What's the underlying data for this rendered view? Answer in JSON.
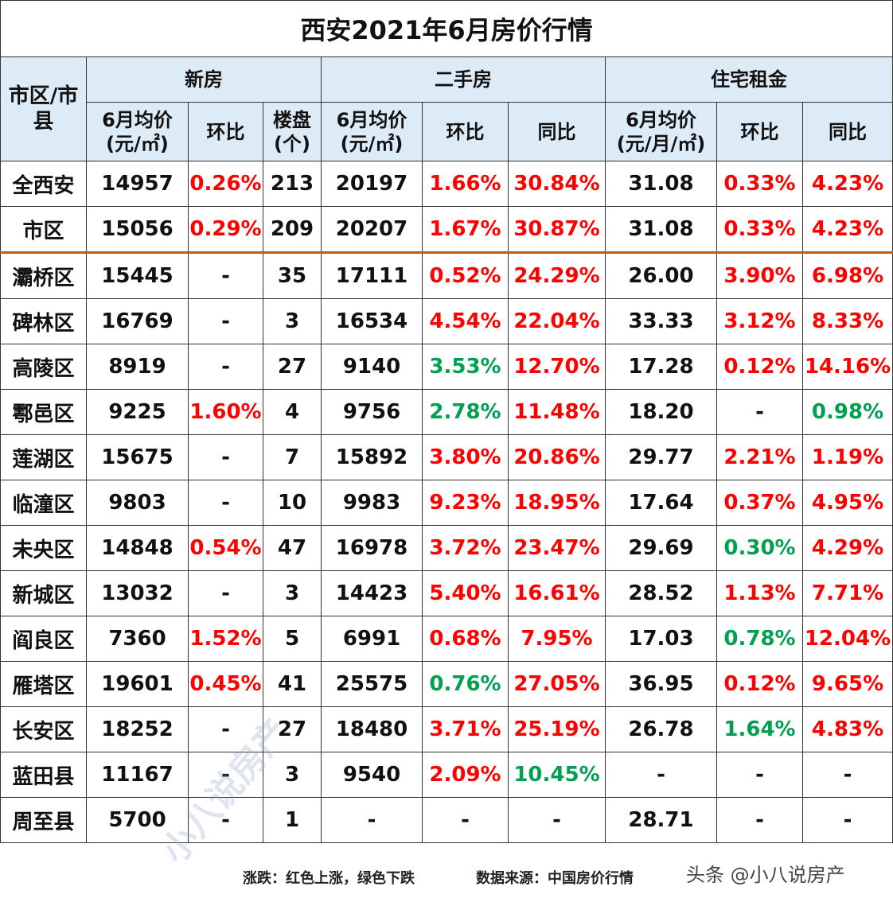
{
  "title": "西安2021年6月房价行情",
  "headers": {
    "region": "市区/市县",
    "new": "新房",
    "second": "二手房",
    "rent": "住宅租金",
    "new_price": "6月均价\n(元/㎡)",
    "new_mom": "环比",
    "new_count": "楼盘\n(个)",
    "sec_price": "6月均价\n(元/㎡)",
    "sec_mom": "环比",
    "sec_yoy": "同比",
    "rent_price": "6月均价\n(元/月/㎡)",
    "rent_mom": "环比",
    "rent_yoy": "同比"
  },
  "colors": {
    "up": "#FF0000",
    "down": "#00A050",
    "header_bg": "#DDEBF7"
  },
  "rows": [
    [
      "全西安",
      "14957",
      "0.26%",
      "213",
      "20197",
      "1.66%",
      "30.84%",
      "31.08",
      "0.33%",
      "4.23%"
    ],
    [
      "市区",
      "15056",
      "0.29%",
      "209",
      "20207",
      "1.67%",
      "30.87%",
      "31.08",
      "0.33%",
      "4.23%"
    ],
    [
      "灞桥区",
      "15445",
      "-",
      "35",
      "17111",
      "0.52%",
      "24.29%",
      "26.00",
      "3.90%",
      "6.98%"
    ],
    [
      "碑林区",
      "16769",
      "-",
      "3",
      "16534",
      "4.54%",
      "22.04%",
      "33.33",
      "3.12%",
      "8.33%"
    ],
    [
      "高陵区",
      "8919",
      "-",
      "27",
      "9140",
      "3.53%",
      "12.70%",
      "17.28",
      "0.12%",
      "14.16%"
    ],
    [
      "鄠邑区",
      "9225",
      "1.60%",
      "4",
      "9756",
      "2.78%",
      "11.48%",
      "18.20",
      "-",
      "0.98%"
    ],
    [
      "莲湖区",
      "15675",
      "-",
      "7",
      "15892",
      "3.80%",
      "20.86%",
      "29.77",
      "2.21%",
      "1.19%"
    ],
    [
      "临潼区",
      "9803",
      "-",
      "10",
      "9983",
      "9.23%",
      "18.95%",
      "17.64",
      "0.37%",
      "4.95%"
    ],
    [
      "未央区",
      "14848",
      "0.54%",
      "47",
      "16978",
      "3.72%",
      "23.47%",
      "29.69",
      "0.30%",
      "4.29%"
    ],
    [
      "新城区",
      "13032",
      "-",
      "3",
      "14423",
      "5.40%",
      "16.61%",
      "28.52",
      "1.13%",
      "7.71%"
    ],
    [
      "阎良区",
      "7360",
      "1.52%",
      "5",
      "6991",
      "0.68%",
      "7.95%",
      "17.03",
      "0.78%",
      "12.04%"
    ],
    [
      "雁塔区",
      "19601",
      "0.45%",
      "41",
      "25575",
      "0.76%",
      "27.05%",
      "36.95",
      "0.12%",
      "9.65%"
    ],
    [
      "长安区",
      "18252",
      "-",
      "27",
      "18480",
      "3.71%",
      "25.19%",
      "26.78",
      "1.64%",
      "4.83%"
    ],
    [
      "蓝田县",
      "11167",
      "-",
      "3",
      "9540",
      "2.09%",
      "10.45%",
      "-",
      "-",
      "-"
    ],
    [
      "周至县",
      "5700",
      "-",
      "1",
      "-",
      "-",
      "-",
      "28.71",
      "-",
      "-"
    ]
  ],
  "row_colors": [
    [
      "",
      "",
      "up",
      "",
      "",
      "up",
      "up",
      "",
      "up",
      "up"
    ],
    [
      "",
      "",
      "up",
      "",
      "",
      "up",
      "up",
      "",
      "up",
      "up"
    ],
    [
      "",
      "",
      "",
      "",
      "",
      "up",
      "up",
      "",
      "up",
      "up"
    ],
    [
      "",
      "",
      "",
      "",
      "",
      "up",
      "up",
      "",
      "up",
      "up"
    ],
    [
      "",
      "",
      "",
      "",
      "",
      "down",
      "up",
      "",
      "up",
      "up"
    ],
    [
      "",
      "",
      "up",
      "",
      "",
      "down",
      "up",
      "",
      "",
      "down"
    ],
    [
      "",
      "",
      "",
      "",
      "",
      "up",
      "up",
      "",
      "up",
      "up"
    ],
    [
      "",
      "",
      "",
      "",
      "",
      "up",
      "up",
      "",
      "up",
      "up"
    ],
    [
      "",
      "",
      "up",
      "",
      "",
      "up",
      "up",
      "",
      "down",
      "up"
    ],
    [
      "",
      "",
      "",
      "",
      "",
      "up",
      "up",
      "",
      "up",
      "up"
    ],
    [
      "",
      "",
      "up",
      "",
      "",
      "up",
      "up",
      "",
      "down",
      "up"
    ],
    [
      "",
      "",
      "up",
      "",
      "",
      "down",
      "up",
      "",
      "up",
      "up"
    ],
    [
      "",
      "",
      "",
      "",
      "",
      "up",
      "up",
      "",
      "down",
      "up"
    ],
    [
      "",
      "",
      "",
      "",
      "",
      "up",
      "down",
      "",
      "",
      ""
    ],
    [
      "",
      "",
      "",
      "",
      "",
      "",
      "",
      "",
      "",
      ""
    ]
  ],
  "footer": {
    "legend": "涨跌：红色上涨，绿色下跌",
    "source": "数据来源：中国房价行情",
    "brand": "头条 @小八说房产"
  },
  "watermark": "小八说房产"
}
